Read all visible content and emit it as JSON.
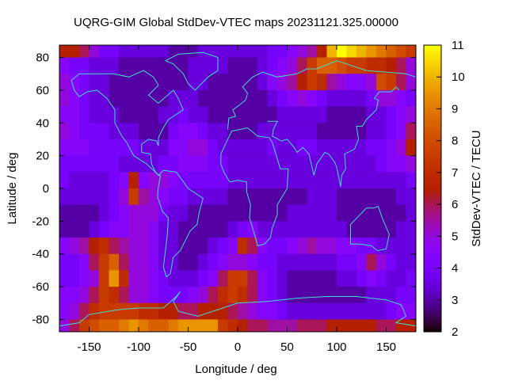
{
  "chart_data": {
    "type": "heatmap",
    "title": "UQRG-GIM Global StdDev-VTEC maps 20231121.325.00000",
    "xlabel": "Longitude / deg",
    "ylabel": "Latitude / deg",
    "colorbar_label": "StdDev-VTEC / TECU",
    "xlim": [
      -180,
      180
    ],
    "ylim": [
      -87.5,
      87.5
    ],
    "x_ticks": [
      -150,
      -100,
      -50,
      0,
      50,
      100,
      150
    ],
    "y_ticks": [
      80,
      60,
      40,
      20,
      0,
      -20,
      -40,
      -60,
      -80
    ],
    "color_range": [
      2,
      11
    ],
    "color_ticks": [
      2,
      3,
      4,
      5,
      6,
      7,
      8,
      9,
      10,
      11
    ],
    "palette": "black-blue-purple-red-orange-yellow",
    "coastline_color": "#40e0d0",
    "grid_lon_centers": [
      -175,
      -165,
      -155,
      -145,
      -135,
      -125,
      -115,
      -105,
      -95,
      -85,
      -75,
      -65,
      -55,
      -45,
      -35,
      -25,
      -15,
      -5,
      5,
      15,
      25,
      35,
      45,
      55,
      65,
      75,
      85,
      95,
      105,
      115,
      125,
      135,
      145,
      155,
      165,
      175
    ],
    "grid_lat_centers": [
      85,
      75,
      65,
      55,
      45,
      35,
      25,
      15,
      5,
      -5,
      -15,
      -25,
      -35,
      -45,
      -55,
      -65,
      -75,
      -85
    ],
    "values": [
      [
        6.5,
        6.5,
        6,
        5,
        4,
        4,
        3.5,
        3.5,
        3.5,
        3.5,
        3.5,
        3,
        3,
        3,
        3.5,
        3.5,
        3.5,
        3.5,
        3.5,
        3.5,
        3.5,
        4,
        4,
        4.5,
        5,
        5.5,
        6.5,
        10,
        11,
        10.5,
        10,
        9.5,
        9,
        8.5,
        8,
        7.5
      ],
      [
        4.5,
        4,
        4,
        3.5,
        3.5,
        3.5,
        3,
        3,
        3,
        3,
        3,
        3,
        3,
        3.5,
        3.5,
        3.5,
        3.5,
        3,
        3,
        3,
        3.5,
        4,
        4.5,
        5,
        6,
        7.5,
        8.5,
        8.5,
        8,
        7.5,
        7.5,
        7,
        7,
        6.5,
        6,
        5
      ],
      [
        5,
        4.5,
        4,
        3.5,
        3.5,
        3,
        3,
        3,
        3,
        3,
        3,
        3,
        3,
        3.5,
        3.5,
        3,
        3,
        3,
        3,
        3,
        3.5,
        4.5,
        5,
        5.5,
        6.5,
        7.5,
        7,
        5.5,
        5,
        4.5,
        4.5,
        5,
        8,
        7.5,
        6,
        5
      ],
      [
        5,
        4.5,
        4,
        3.5,
        3.5,
        3,
        3,
        3,
        3,
        3,
        3,
        3.5,
        3.5,
        3.5,
        3,
        3,
        3,
        3,
        3,
        3,
        3,
        3.5,
        4,
        4.5,
        5,
        4.5,
        4,
        3.5,
        3.5,
        3.5,
        3.5,
        4,
        5,
        5,
        4.5,
        4
      ],
      [
        4.5,
        4.5,
        4,
        3.5,
        3.5,
        3.5,
        3,
        3,
        3,
        3,
        3.5,
        3.5,
        4,
        3.5,
        3.5,
        3,
        3,
        3,
        3,
        3,
        3,
        3,
        3.5,
        3.5,
        3.5,
        3.5,
        3.5,
        3,
        3,
        3,
        3,
        3.5,
        3.5,
        4,
        4.5,
        5
      ],
      [
        5,
        4.5,
        4,
        4,
        4,
        3.5,
        3.5,
        3.5,
        3,
        3,
        3,
        4,
        4.5,
        4.5,
        4,
        3.5,
        3.5,
        3,
        3,
        3,
        3.5,
        3.5,
        3.5,
        3.5,
        3.5,
        3.5,
        3,
        3,
        3,
        3,
        3,
        3.5,
        3.5,
        4,
        4.5,
        6
      ],
      [
        4.5,
        4.5,
        4.5,
        4,
        4,
        4,
        4,
        4,
        3.5,
        3.5,
        3.5,
        4.5,
        4.5,
        5,
        5,
        4,
        3.5,
        3.5,
        3.5,
        3.5,
        3.5,
        4,
        3.5,
        3.5,
        4,
        4,
        3.5,
        3.5,
        3.5,
        3.5,
        3.5,
        4,
        4,
        4.5,
        5,
        6.5
      ],
      [
        4,
        4,
        4,
        4,
        4,
        4,
        3.5,
        3.5,
        3.5,
        3.5,
        4,
        4,
        4.5,
        4.5,
        4.5,
        4,
        4,
        3.5,
        3.5,
        3.5,
        3.5,
        3.5,
        3.5,
        3.5,
        3.5,
        3.5,
        3.5,
        3.5,
        3.5,
        3.5,
        3.5,
        3.5,
        4,
        4.5,
        4.5,
        5
      ],
      [
        4,
        3.5,
        3.5,
        3.5,
        3.5,
        4,
        4.5,
        6.5,
        4.5,
        5,
        5,
        4.5,
        4,
        4,
        4,
        4,
        4,
        3.5,
        3.5,
        3.5,
        3.5,
        3.5,
        3.5,
        3.5,
        3.5,
        3.5,
        3.5,
        3.5,
        3.5,
        3.5,
        3.5,
        3.5,
        3.5,
        3.5,
        3.5,
        4
      ],
      [
        3.5,
        3.5,
        3.5,
        3.5,
        3.5,
        4,
        5,
        7.5,
        5.5,
        5,
        4.5,
        4,
        4,
        3.5,
        3.5,
        3.5,
        3.5,
        3,
        3,
        3,
        3,
        3,
        3,
        3,
        3,
        3.5,
        3.5,
        3.5,
        3,
        3,
        3,
        3,
        3,
        3,
        3.5,
        3.5
      ],
      [
        3,
        3,
        3,
        3,
        3.5,
        4,
        4.5,
        5,
        5,
        5,
        4,
        3.5,
        3.5,
        3,
        3,
        3,
        3,
        3,
        3,
        3,
        3,
        3,
        3,
        3.5,
        3.5,
        3.5,
        3.5,
        3.5,
        3,
        3,
        3,
        3,
        3,
        3,
        3,
        3.5
      ],
      [
        3,
        3,
        3,
        3.5,
        4,
        4.5,
        4.5,
        5,
        5,
        4.5,
        3.5,
        3.5,
        3,
        3,
        3,
        3,
        3,
        3.5,
        4,
        4.5,
        3.5,
        3.5,
        3.5,
        3.5,
        3.5,
        3.5,
        3.5,
        3.5,
        3.5,
        3,
        3,
        3,
        3,
        3,
        3.5,
        3.5
      ],
      [
        4.5,
        5,
        5.5,
        6.5,
        7,
        6,
        5.5,
        5,
        5,
        4.5,
        3.5,
        3.5,
        3,
        3,
        3,
        3.5,
        4,
        4.5,
        7,
        6,
        4.5,
        4,
        4,
        4.5,
        5,
        5.5,
        5,
        5,
        4.5,
        4.5,
        4,
        4,
        3.5,
        3.5,
        3.5,
        3.5
      ],
      [
        4,
        4,
        4.5,
        6,
        7.5,
        8.5,
        6,
        5,
        5,
        4.5,
        3.5,
        3.5,
        3,
        3,
        3.5,
        4,
        4.5,
        5,
        5,
        4.5,
        4,
        4,
        3.5,
        3.5,
        3.5,
        3.5,
        3.5,
        3.5,
        4,
        4,
        4.5,
        6,
        5,
        4,
        3.5,
        3.5
      ],
      [
        4,
        4,
        4.5,
        5,
        7.5,
        9.5,
        7,
        5,
        5,
        4.5,
        4,
        3.5,
        3.5,
        3.5,
        4,
        4.5,
        6,
        7.5,
        7.5,
        6,
        4.5,
        4,
        3.5,
        3,
        3,
        3,
        3,
        3,
        3.5,
        3.5,
        4,
        4.5,
        4,
        3.5,
        3.5,
        4
      ],
      [
        4.5,
        4.5,
        5,
        6,
        7.5,
        7,
        6,
        5,
        5,
        4.5,
        4,
        4,
        4,
        4.5,
        5,
        6,
        7,
        7.5,
        7,
        6,
        4.5,
        4,
        3.5,
        3,
        3,
        3,
        3,
        3,
        3,
        3,
        3,
        3.5,
        3.5,
        3.5,
        4,
        4
      ],
      [
        4.5,
        5,
        6,
        7,
        7.5,
        7.5,
        7.5,
        7.5,
        7,
        7,
        6.5,
        6.5,
        6,
        6,
        6.5,
        6.5,
        6.5,
        6,
        5.5,
        5,
        4.5,
        4.5,
        4,
        3.5,
        3.5,
        3.5,
        3.5,
        3.5,
        3.5,
        3.5,
        3.5,
        3.5,
        3.5,
        4,
        4.5,
        4.5
      ],
      [
        5,
        6,
        7.5,
        8,
        8.5,
        8.5,
        9,
        9.5,
        9,
        8.5,
        8.5,
        9,
        9.5,
        9.5,
        9.5,
        9.5,
        7.5,
        7,
        6.5,
        6,
        6,
        5.5,
        5.5,
        5.5,
        6,
        6,
        6,
        6.5,
        6.5,
        6.5,
        6.5,
        6.5,
        6,
        6,
        6.5,
        6.5
      ]
    ]
  }
}
